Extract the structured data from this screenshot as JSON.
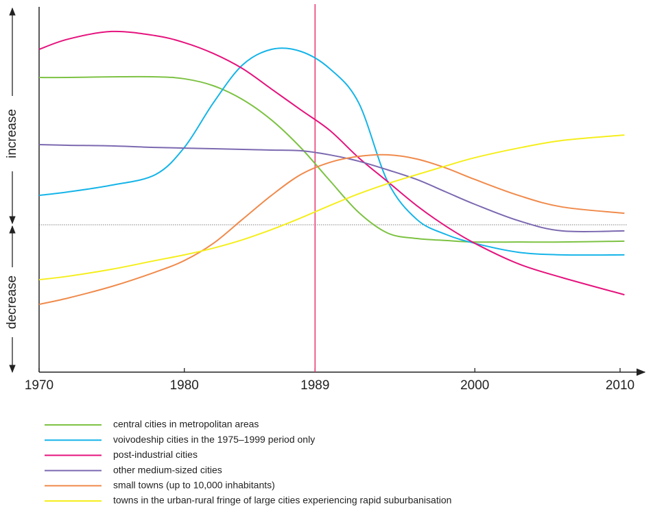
{
  "chart_data": {
    "type": "line",
    "x": [
      1970,
      1972,
      1975,
      1978,
      1980,
      1982,
      1984,
      1986,
      1988,
      1990,
      1992,
      1994,
      1996,
      1998,
      2000,
      2003,
      2006,
      2010.3
    ],
    "xlim": [
      1970,
      2011.7
    ],
    "xticks": [
      1970,
      1980,
      1989,
      2000,
      2010
    ],
    "ylim": [
      -67.6,
      100
    ],
    "y_labels": {
      "increase": "increase",
      "decrease": "decrease"
    },
    "baseline": 0,
    "marker_x": 1989,
    "marker_color": "#e8336e",
    "series": [
      {
        "name": "central cities in metropolitan areas",
        "color": "#7cc242",
        "values": [
          67.6,
          67.6,
          67.9,
          67.9,
          67.0,
          63.8,
          57.5,
          48.1,
          35.5,
          20.4,
          5.7,
          -3.8,
          -6.3,
          -7.2,
          -7.9,
          -7.9,
          -7.9,
          -7.5
        ]
      },
      {
        "name": "voivodeship cities in the 1975–1999 period only",
        "color": "#14b4e8",
        "values": [
          13.5,
          15.1,
          18.2,
          23.0,
          35.5,
          56.0,
          73.3,
          80.5,
          79.6,
          71.7,
          56.0,
          19.8,
          2.5,
          -4.4,
          -8.5,
          -12.6,
          -13.8,
          -13.8
        ]
      },
      {
        "name": "post-industrial cities",
        "color": "#e5127d",
        "values": [
          80.5,
          85.2,
          88.7,
          86.8,
          83.6,
          78.6,
          71.7,
          62.3,
          52.8,
          43.4,
          30.8,
          19.8,
          8.8,
          -0.6,
          -8.5,
          -17.9,
          -24.2,
          -32.1
        ]
      },
      {
        "name": "other medium-sized cities",
        "color": "#7b68b0",
        "values": [
          36.8,
          36.5,
          36.2,
          35.5,
          35.2,
          34.9,
          34.6,
          34.3,
          34.0,
          32.1,
          29.2,
          25.2,
          20.8,
          15.1,
          9.4,
          1.9,
          -2.8,
          -2.8
        ]
      },
      {
        "name": "small towns (up to 10,000 inhabitants)",
        "color": "#f08a4b",
        "values": [
          -36.5,
          -33.6,
          -28.3,
          -21.7,
          -16.4,
          -8.5,
          2.5,
          13.5,
          23.0,
          28.6,
          31.4,
          32.1,
          30.2,
          26.1,
          20.8,
          13.5,
          8.2,
          5.3
        ]
      },
      {
        "name": "towns in the urban-rural fringe of large cities experiencing rapid suburbanisation",
        "color": "#f5ee1b",
        "values": [
          -25.2,
          -23.6,
          -20.4,
          -16.4,
          -13.8,
          -10.7,
          -6.9,
          -2.2,
          3.1,
          8.8,
          14.2,
          18.9,
          23.0,
          27.0,
          30.8,
          35.2,
          38.7,
          41.2
        ]
      }
    ]
  }
}
